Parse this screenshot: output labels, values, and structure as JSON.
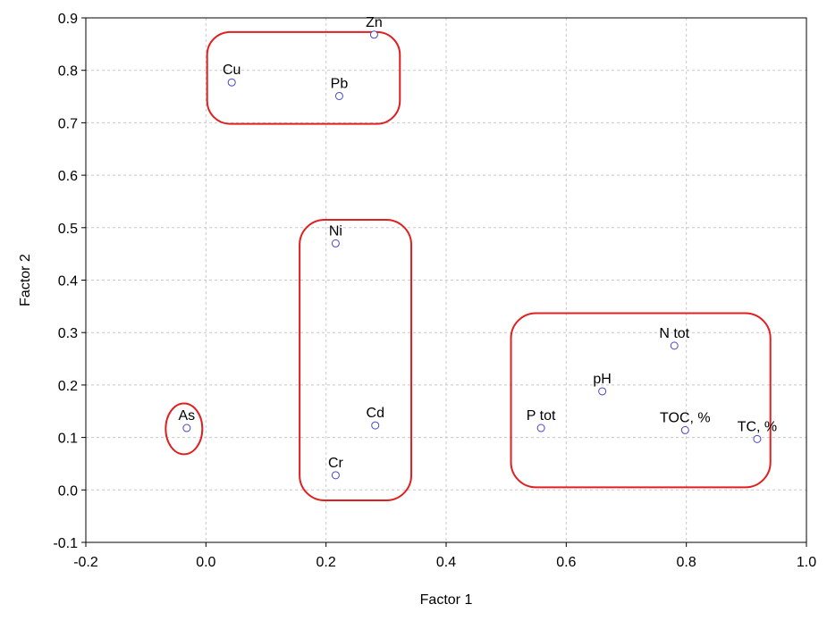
{
  "chart_data": {
    "type": "scatter",
    "xlabel": "Factor 1",
    "ylabel": "Factor 2",
    "xlim": [
      -0.2,
      1.0
    ],
    "ylim": [
      -0.1,
      0.9
    ],
    "x_ticks": [
      -0.2,
      0.0,
      0.2,
      0.4,
      0.6,
      0.8,
      1.0
    ],
    "x_tick_labels": [
      "-0.2",
      "0.0",
      "0.2",
      "0.4",
      "0.6",
      "0.8",
      "1.0"
    ],
    "y_ticks": [
      -0.1,
      0.0,
      0.1,
      0.2,
      0.3,
      0.4,
      0.5,
      0.6,
      0.7,
      0.8,
      0.9
    ],
    "y_tick_labels": [
      "-0.1",
      "0.0",
      "0.1",
      "0.2",
      "0.3",
      "0.4",
      "0.5",
      "0.6",
      "0.7",
      "0.8",
      "0.9"
    ],
    "grid": true,
    "marker_color": "#4646c8",
    "group_outline_color": "#e02020",
    "points": [
      {
        "label": "Zn",
        "x": 0.28,
        "y": 0.868
      },
      {
        "label": "Cu",
        "x": 0.043,
        "y": 0.777
      },
      {
        "label": "Pb",
        "x": 0.222,
        "y": 0.751
      },
      {
        "label": "Ni",
        "x": 0.216,
        "y": 0.47
      },
      {
        "label": "Cd",
        "x": 0.282,
        "y": 0.123
      },
      {
        "label": "Cr",
        "x": 0.216,
        "y": 0.028
      },
      {
        "label": "As",
        "x": -0.032,
        "y": 0.118
      },
      {
        "label": "P tot",
        "x": 0.558,
        "y": 0.118
      },
      {
        "label": "pH",
        "x": 0.66,
        "y": 0.188
      },
      {
        "label": "N tot",
        "x": 0.78,
        "y": 0.275
      },
      {
        "label": "TOC, %",
        "x": 0.798,
        "y": 0.114
      },
      {
        "label": "TC, %",
        "x": 0.918,
        "y": 0.097
      }
    ],
    "groups": [
      {
        "shape": "rounded-rect",
        "members": [
          "Zn",
          "Cu",
          "Pb"
        ],
        "x_range": [
          0.002,
          0.323
        ],
        "y_range": [
          0.698,
          0.873
        ]
      },
      {
        "shape": "rounded-rect",
        "members": [
          "Ni",
          "Cd",
          "Cr"
        ],
        "x_range": [
          0.156,
          0.342
        ],
        "y_range": [
          -0.02,
          0.515
        ]
      },
      {
        "shape": "ellipse",
        "members": [
          "As"
        ],
        "x_range": [
          -0.067,
          -0.006
        ],
        "y_range": [
          0.068,
          0.165
        ]
      },
      {
        "shape": "rounded-rect",
        "members": [
          "P tot",
          "pH",
          "N tot",
          "TOC, %",
          "TC, %"
        ],
        "x_range": [
          0.508,
          0.94
        ],
        "y_range": [
          0.005,
          0.337
        ]
      }
    ]
  }
}
